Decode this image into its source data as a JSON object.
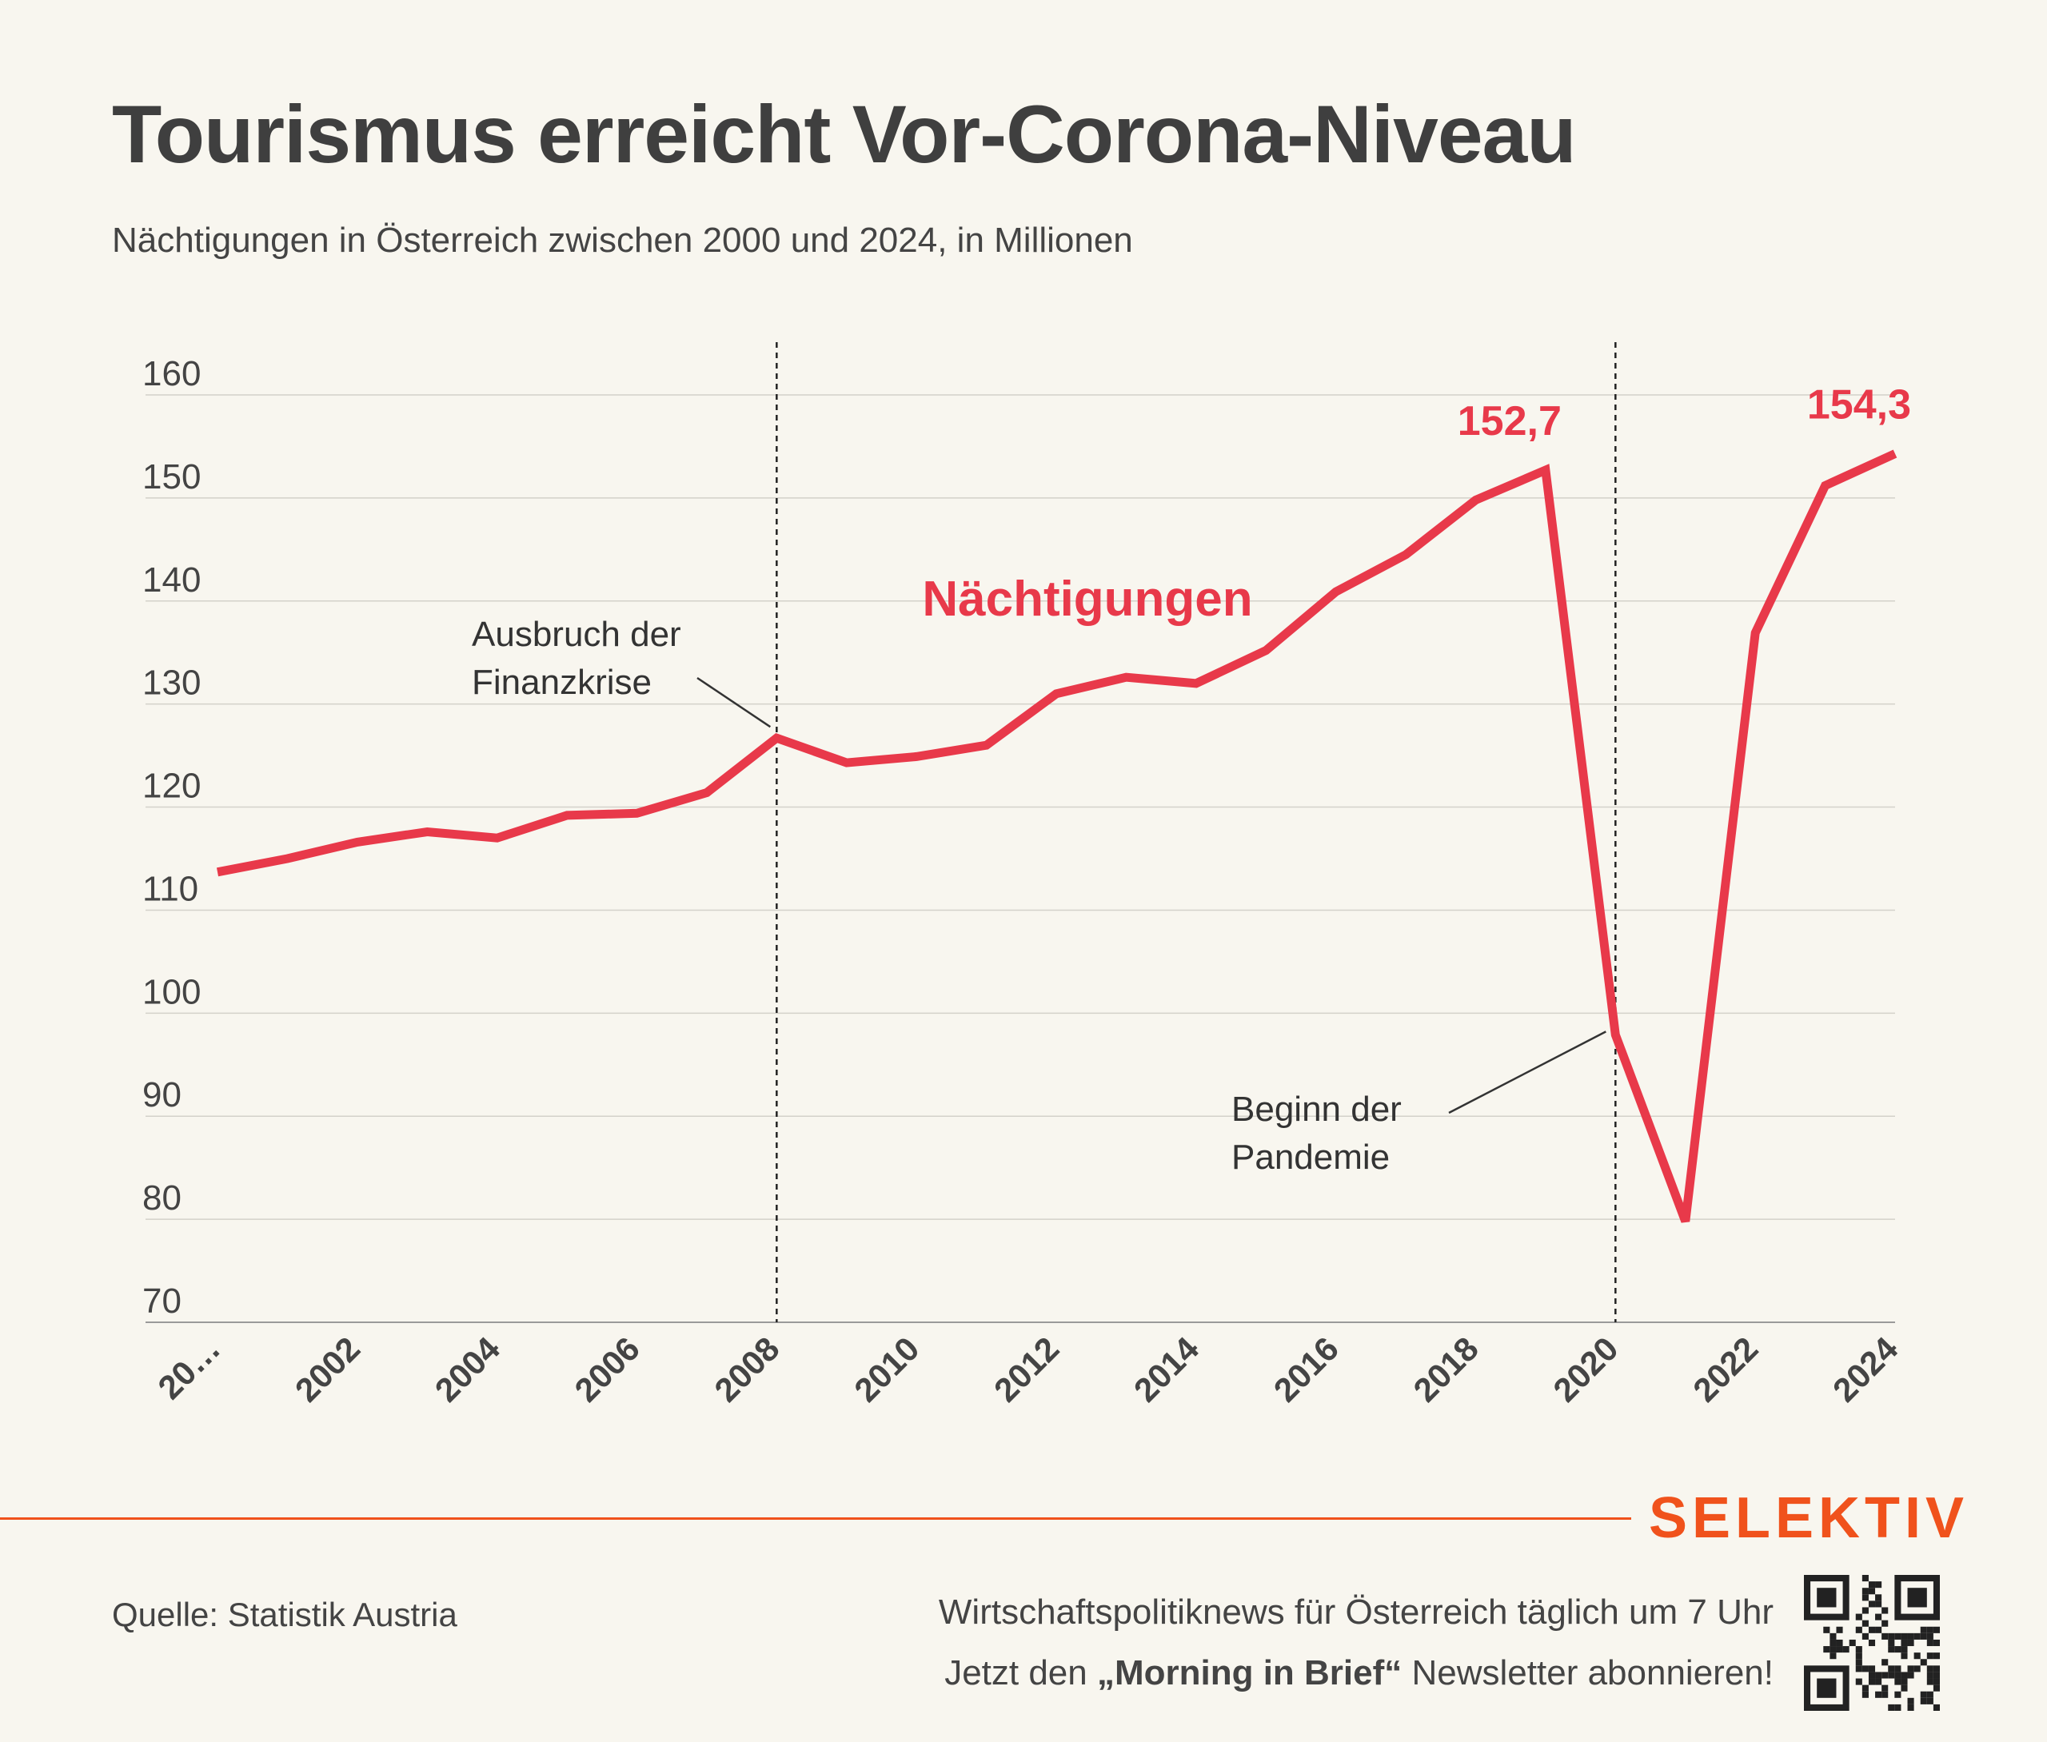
{
  "title": "Tourismus erreicht Vor-Corona-Niveau",
  "subtitle": "Nächtigungen in Österreich zwischen 2000 und 2024, in Millionen",
  "chart_data": {
    "type": "line",
    "title": "Tourismus erreicht Vor-Corona-Niveau",
    "subtitle": "Nächtigungen in Österreich zwischen 2000 und 2024, in Millionen",
    "xlabel": "",
    "ylabel": "",
    "x": [
      2000,
      2001,
      2002,
      2003,
      2004,
      2005,
      2006,
      2007,
      2008,
      2009,
      2010,
      2011,
      2012,
      2013,
      2014,
      2015,
      2016,
      2017,
      2018,
      2019,
      2020,
      2021,
      2022,
      2023,
      2024
    ],
    "series": [
      {
        "name": "Nächtigungen",
        "color": "#e8394a",
        "values": [
          113.7,
          115.0,
          116.6,
          117.6,
          117.0,
          119.2,
          119.4,
          121.4,
          126.7,
          124.3,
          124.9,
          126.0,
          131.0,
          132.6,
          132.0,
          135.2,
          140.9,
          144.5,
          149.8,
          152.7,
          97.9,
          79.8,
          136.9,
          151.2,
          154.3
        ]
      }
    ],
    "ylim": [
      70,
      160
    ],
    "yticks": [
      "70",
      "80",
      "90",
      "100",
      "110",
      "120",
      "130",
      "140",
      "150",
      "160"
    ],
    "xticks": [
      "20…",
      "2002",
      "2004",
      "2006",
      "2008",
      "2010",
      "2012",
      "2014",
      "2016",
      "2018",
      "2020",
      "2022",
      "2024"
    ],
    "grid": true,
    "series_label": "Nächtigungen",
    "value_labels": [
      {
        "year": 2019,
        "text": "152,7"
      },
      {
        "year": 2024,
        "text": "154,3"
      }
    ],
    "annotations": [
      {
        "year": 2008,
        "lines": [
          "Ausbruch der",
          "Finanzkrise"
        ]
      },
      {
        "year": 2020,
        "lines": [
          "Beginn der",
          "Pandemie"
        ]
      }
    ]
  },
  "footer": {
    "brand": "SELEKTIV",
    "source": "Quelle: Statistik Austria",
    "promo_line1": "Wirtschaftspolitiknews für Österreich täglich um 7 Uhr",
    "promo_line2_pre": "Jetzt den ",
    "promo_line2_bold": "„Morning in Brief“",
    "promo_line2_post": " Newsletter abonnieren!",
    "qr_icon": "qr-code-icon"
  }
}
